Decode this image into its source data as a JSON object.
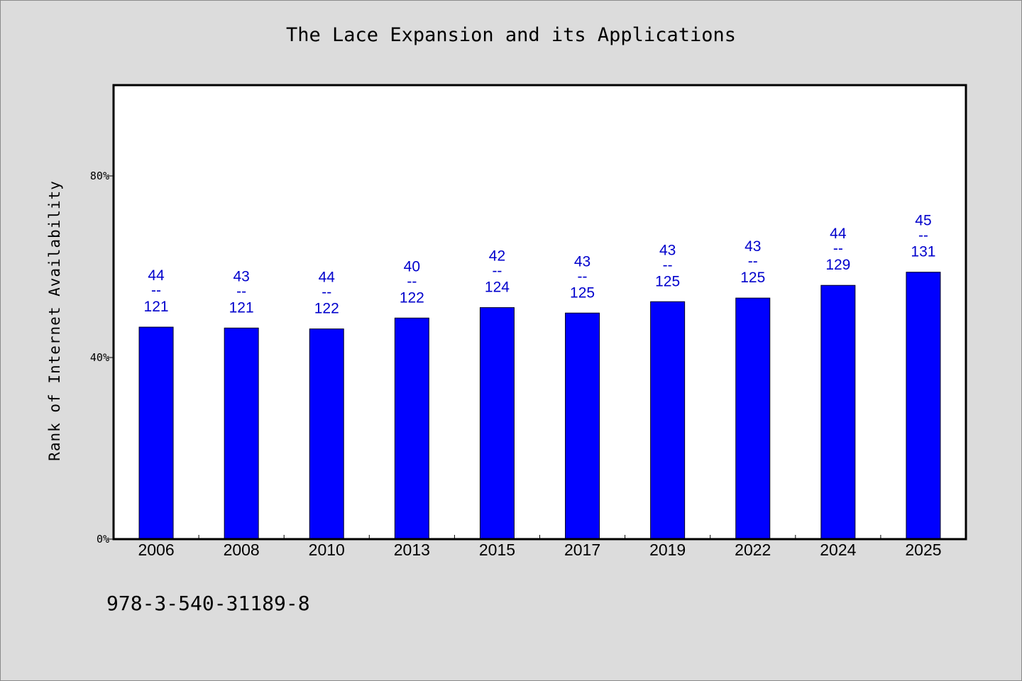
{
  "chart_data": {
    "type": "bar",
    "title": "The Lace Expansion and its Applications",
    "xlabel": "",
    "ylabel": "Rank of Internet Availability",
    "categories": [
      "2006",
      "2008",
      "2010",
      "2013",
      "2015",
      "2017",
      "2019",
      "2022",
      "2024",
      "2025"
    ],
    "values": [
      46.7,
      46.5,
      46.3,
      48.7,
      51.0,
      49.8,
      52.3,
      53.1,
      55.9,
      58.8
    ],
    "labels_top": [
      "44",
      "43",
      "44",
      "40",
      "42",
      "43",
      "43",
      "43",
      "44",
      "45"
    ],
    "labels_bottom": [
      "121",
      "121",
      "122",
      "122",
      "124",
      "125",
      "125",
      "125",
      "129",
      "131"
    ],
    "label_separator": "--",
    "ylim": [
      0,
      100
    ],
    "yticks": [
      0,
      40,
      80
    ],
    "ytick_labels": [
      "0%",
      "40%",
      "80%"
    ],
    "bar_color": "#0000ff",
    "label_color": "#0000cc",
    "grid": false,
    "legend": "none"
  },
  "footer": {
    "isbn": "978-3-540-31189-8"
  }
}
